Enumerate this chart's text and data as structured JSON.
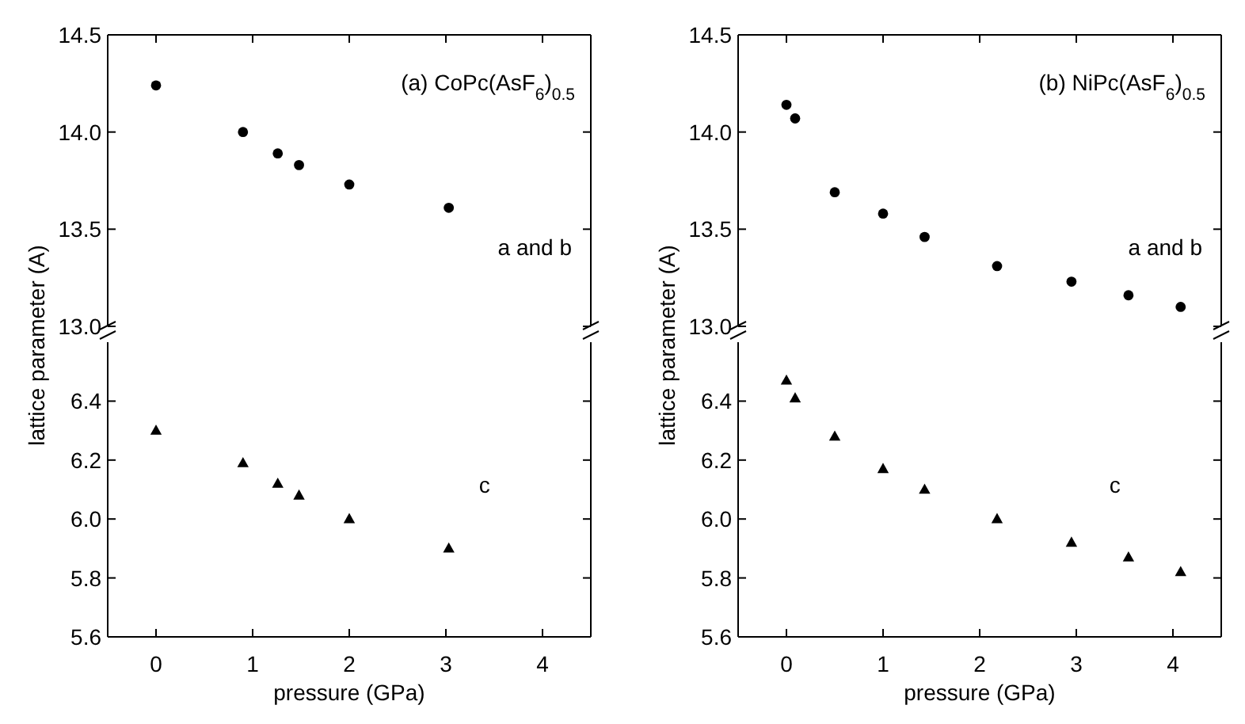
{
  "chart_data": [
    {
      "type": "scatter",
      "x": [
        0,
        0.9,
        1.26,
        1.48,
        2.0,
        3.03
      ],
      "values": [
        14.24,
        14.0,
        13.89,
        13.83,
        13.73,
        13.61
      ],
      "color": "#000000",
      "marker": "circle",
      "xlim": [
        -0.5,
        4.5
      ],
      "xticks": [
        0,
        1,
        2,
        3,
        4
      ],
      "ylim": [
        13.0,
        14.5
      ],
      "yticks": [
        {
          "value": 13.0,
          "label": "13.0"
        },
        {
          "value": 13.5,
          "label": "13.5"
        },
        {
          "value": 14.0,
          "label": "14.0"
        },
        {
          "value": 14.5,
          "label": "14.5"
        }
      ],
      "tick_labels": "y",
      "grid": false,
      "annotations": [
        "(a) CoPc(AsF$_{6}$)$_{0.5}$",
        "a and b"
      ]
    },
    {
      "type": "scatter",
      "x": [
        0,
        0.9,
        1.26,
        1.48,
        2.0,
        3.03
      ],
      "values": [
        6.3,
        6.19,
        6.12,
        6.08,
        6.0,
        5.9
      ],
      "color": "#000000",
      "marker": "triangle",
      "xlim": [
        -0.5,
        4.5
      ],
      "xticks": [
        0,
        1,
        2,
        3,
        4
      ],
      "ylim": [
        5.6,
        6.6
      ],
      "yticks": [
        5.6,
        5.8,
        {
          "value": 6.0,
          "label": "6.0"
        },
        6.2,
        6.4
      ],
      "grid": false,
      "xlabel": "pressure (GPa)",
      "ylabel": "lattice parameter (A)",
      "annotations": [
        "c"
      ]
    },
    {
      "type": "scatter",
      "x": [
        0,
        0.09,
        0.5,
        1.0,
        1.43,
        2.18,
        2.95,
        3.54,
        4.08
      ],
      "values": [
        14.14,
        14.07,
        13.69,
        13.58,
        13.46,
        13.31,
        13.23,
        13.16,
        13.1
      ],
      "color": "#000000",
      "marker": "circle",
      "xlim": [
        -0.5,
        4.5
      ],
      "xticks": [
        0,
        1,
        2,
        3,
        4
      ],
      "ylim": [
        13.0,
        14.5
      ],
      "yticks": [
        {
          "value": 13.0,
          "label": "13.0"
        },
        {
          "value": 13.5,
          "label": "13.5"
        },
        {
          "value": 14.0,
          "label": "14.0"
        },
        {
          "value": 14.5,
          "label": "14.5"
        }
      ],
      "tick_labels": "y",
      "grid": false,
      "annotations": [
        "(b) NiPc(AsF$_{6}$)$_{0.5}$",
        "a and b"
      ]
    },
    {
      "type": "scatter",
      "x": [
        0,
        0.09,
        0.5,
        1.0,
        1.43,
        2.18,
        2.95,
        3.54,
        4.08
      ],
      "values": [
        6.47,
        6.41,
        6.28,
        6.17,
        6.1,
        6.0,
        5.92,
        5.87,
        5.82
      ],
      "color": "#000000",
      "marker": "triangle",
      "xlim": [
        -0.5,
        4.5
      ],
      "xticks": [
        0,
        1,
        2,
        3,
        4
      ],
      "ylim": [
        5.6,
        6.6
      ],
      "yticks": [
        5.6,
        5.8,
        {
          "value": 6.0,
          "label": "6.0"
        },
        6.2,
        6.4
      ],
      "grid": false,
      "xlabel": "pressure (GPa)",
      "ylabel": "lattice parameter (A)",
      "annotations": [
        "c"
      ]
    }
  ]
}
